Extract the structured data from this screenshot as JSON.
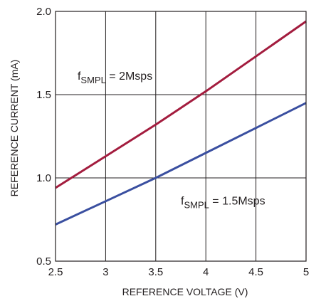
{
  "chart_data": {
    "type": "line",
    "xlabel": "REFERENCE VOLTAGE (V)",
    "ylabel": "REFERENCE CURRENT (mA)",
    "xlim": [
      2.5,
      5
    ],
    "ylim": [
      0.5,
      2.0
    ],
    "grid": true,
    "xticks": [
      {
        "value": 2.5,
        "label": "2.5"
      },
      {
        "value": 3,
        "label": "3"
      },
      {
        "value": 3.5,
        "label": "3.5"
      },
      {
        "value": 4,
        "label": "4"
      },
      {
        "value": 4.5,
        "label": "4.5"
      },
      {
        "value": 5,
        "label": "5"
      }
    ],
    "yticks": [
      {
        "value": 0.5,
        "label": "0.5"
      },
      {
        "value": 1.0,
        "label": "1.0"
      },
      {
        "value": 1.5,
        "label": "1.5"
      },
      {
        "value": 2.0,
        "label": "2.0"
      }
    ],
    "series": [
      {
        "label_main": "f",
        "label_sub": "SMPL",
        "label_rest": " = 2Msps",
        "label_at": {
          "x": 2.72,
          "y": 1.59
        },
        "color": "#a31c3e",
        "x": [
          2.5,
          3.0,
          3.5,
          4.0,
          4.5,
          5.0
        ],
        "y": [
          0.94,
          1.13,
          1.32,
          1.52,
          1.73,
          1.94
        ]
      },
      {
        "label_main": "f",
        "label_sub": "SMPL",
        "label_rest": " = 1.5Msps",
        "label_at": {
          "x": 3.75,
          "y": 0.84
        },
        "color": "#3a4fa0",
        "x": [
          2.5,
          3.0,
          3.5,
          4.0,
          4.5,
          5.0
        ],
        "y": [
          0.72,
          0.86,
          1.0,
          1.15,
          1.3,
          1.45
        ]
      }
    ]
  }
}
